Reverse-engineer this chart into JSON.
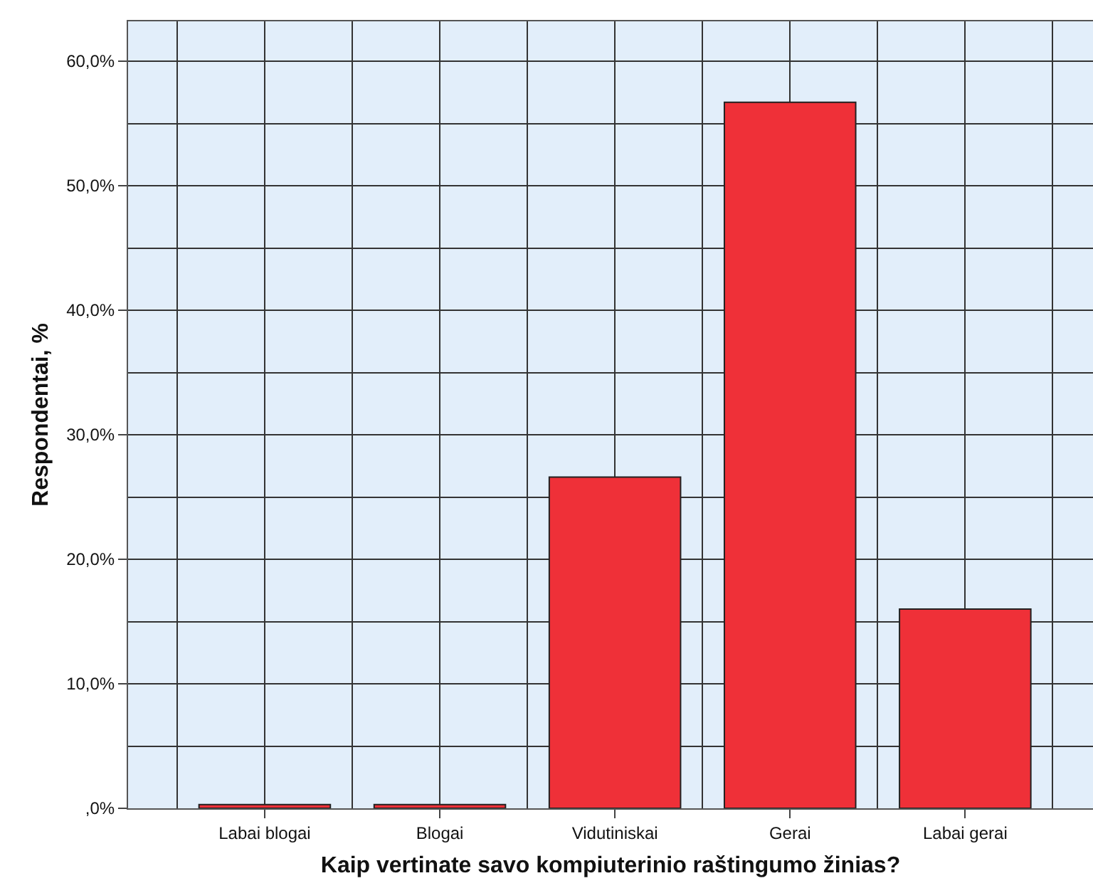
{
  "chart_data": {
    "type": "bar",
    "xlabel": "Kaip vertinate savo kompiuterinio raštingumo žinias?",
    "ylabel": "Respondentai, %",
    "categories": [
      "Labai blogai",
      "Blogai",
      "Vidutiniskai",
      "Gerai",
      "Labai gerai"
    ],
    "values": [
      0.3,
      0.3,
      26.6,
      56.7,
      16.0
    ],
    "color": "#ef3038",
    "ylim": [
      0,
      63.2
    ],
    "yticks": [
      {
        "value": 0,
        "label": ",0%"
      },
      {
        "value": 10,
        "label": "10,0%"
      },
      {
        "value": 20,
        "label": "20,0%"
      },
      {
        "value": 30,
        "label": "30,0%"
      },
      {
        "value": 40,
        "label": "40,0%"
      },
      {
        "value": 50,
        "label": "50,0%"
      },
      {
        "value": 60,
        "label": "60,0%"
      }
    ],
    "grid": true,
    "legend": false
  }
}
